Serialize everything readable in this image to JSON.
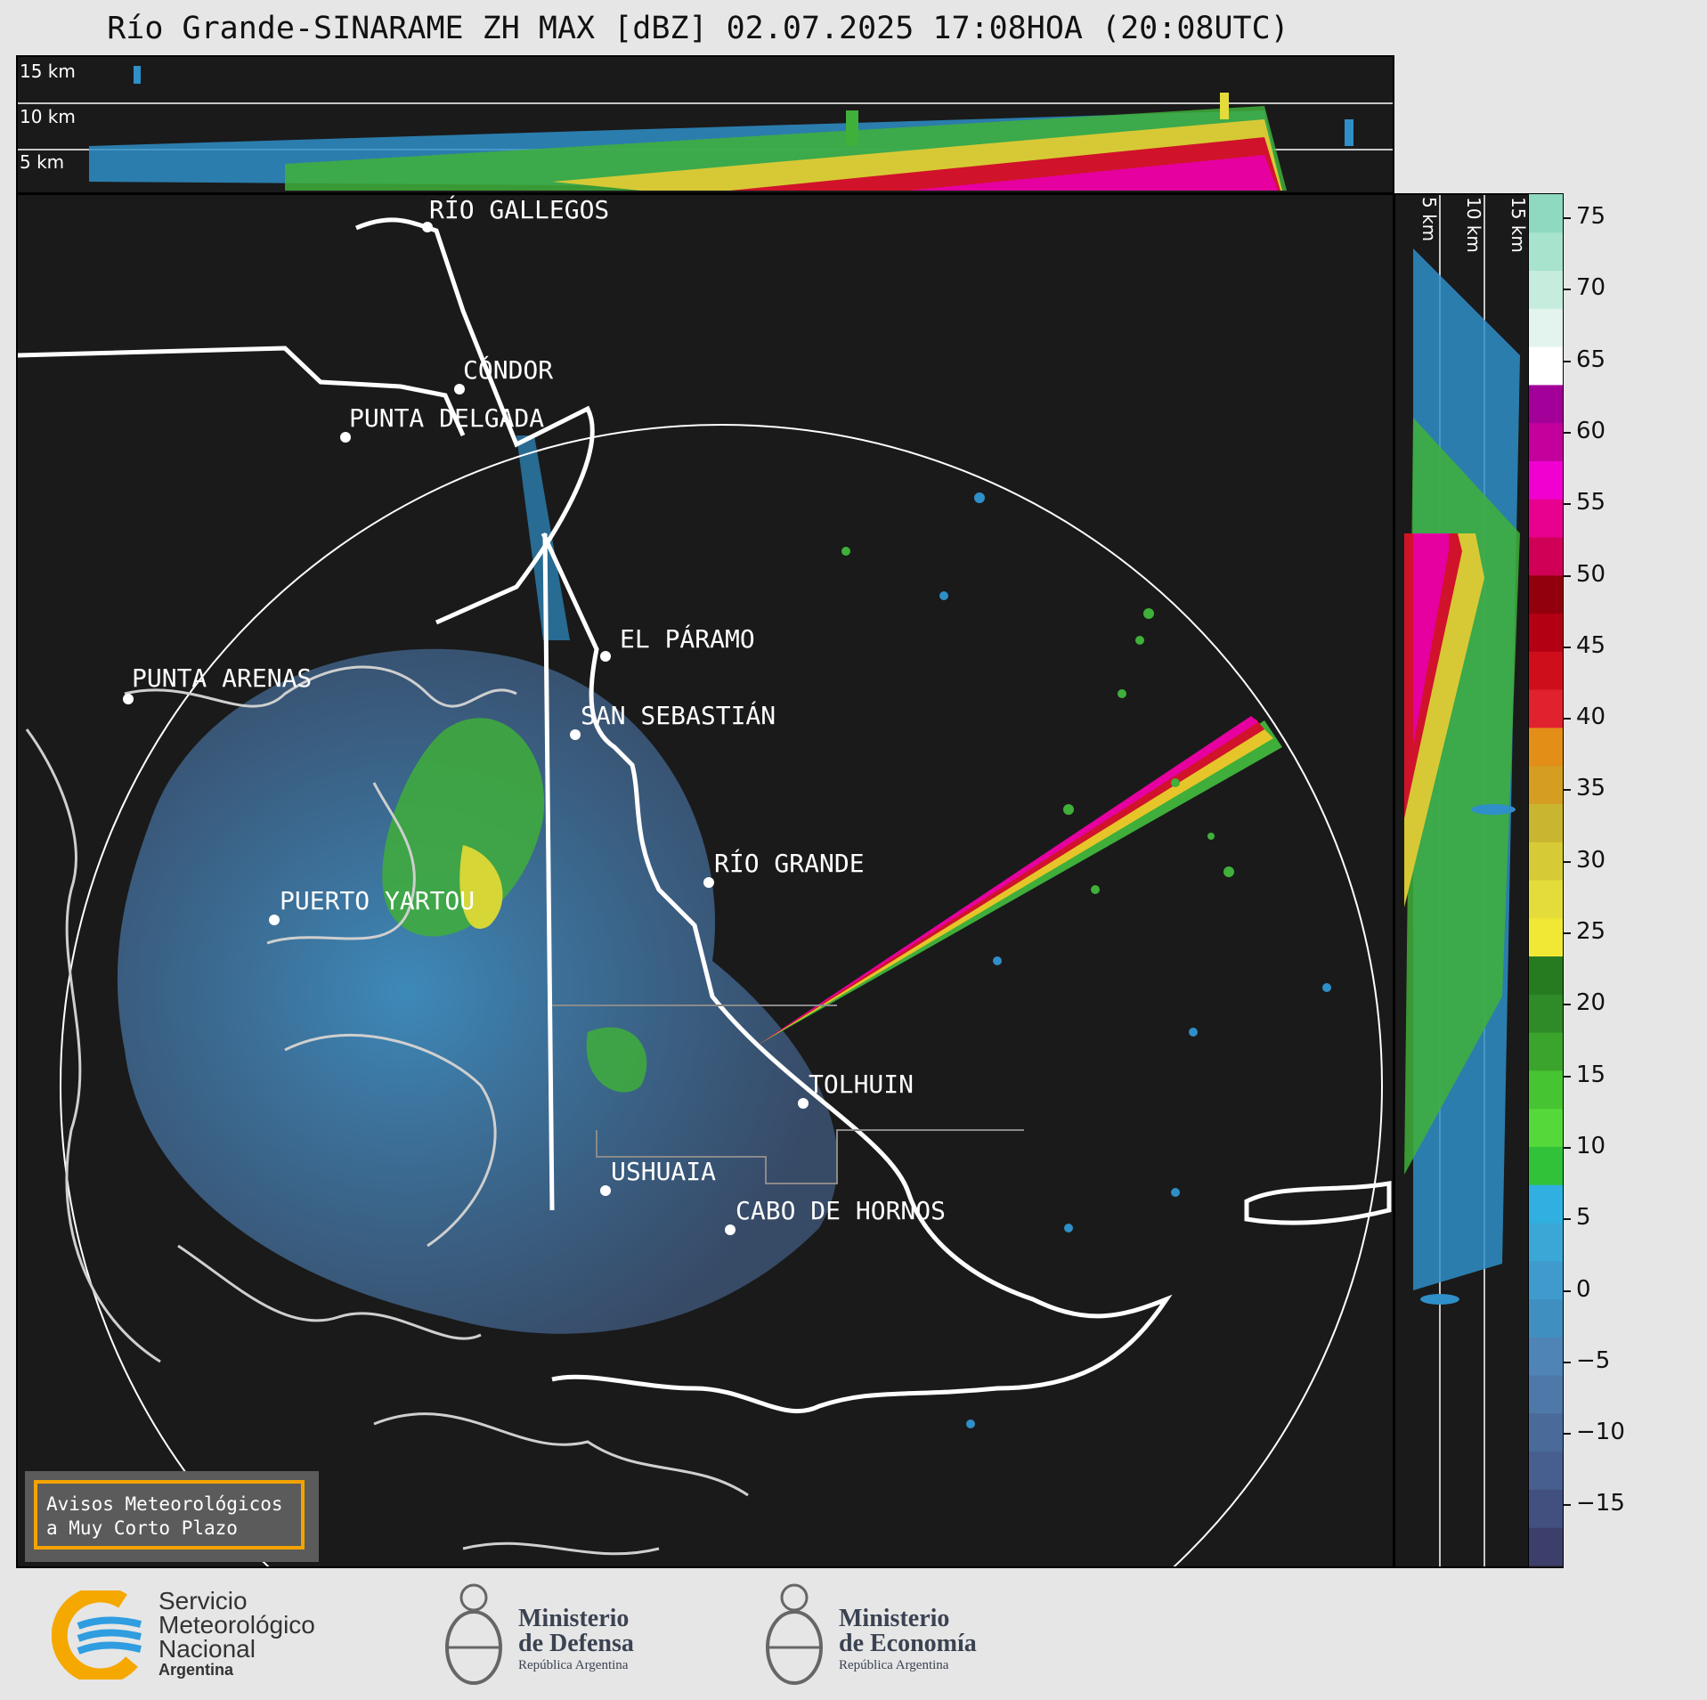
{
  "title": "Río Grande-SINARAME ZH MAX [dBZ] 02.07.2025 17:08HOA (20:08UTC)",
  "height_labels": {
    "top": [
      "15 km",
      "10 km",
      "5 km"
    ],
    "side": [
      "5 km",
      "10 km",
      "15 km"
    ]
  },
  "cities": [
    {
      "name": "RÍO GALLEGOS"
    },
    {
      "name": "CÓNDOR"
    },
    {
      "name": "PUNTA DELGADA"
    },
    {
      "name": "EL PÁRAMO"
    },
    {
      "name": "PUNTA ARENAS"
    },
    {
      "name": "SAN SEBASTIÁN"
    },
    {
      "name": "RÍO GRANDE"
    },
    {
      "name": "PUERTO YARTOU"
    },
    {
      "name": "TOLHUIN"
    },
    {
      "name": "USHUAIA"
    },
    {
      "name": "CABO DE HORNOS"
    }
  ],
  "colorbar": {
    "unit": "dBZ",
    "ticks": [
      "75",
      "70",
      "65",
      "60",
      "55",
      "50",
      "45",
      "40",
      "35",
      "30",
      "25",
      "20",
      "15",
      "10",
      "5",
      "0",
      "−5",
      "−10",
      "−15"
    ],
    "colors": [
      "#3d3f6b",
      "#42507f",
      "#475f8e",
      "#4a6a99",
      "#4e78a8",
      "#4e84b6",
      "#3f8fc1",
      "#3f9bcc",
      "#3aa7d7",
      "#2fb0e0",
      "#31c23a",
      "#54d83a",
      "#47c431",
      "#3aa42c",
      "#2f8a28",
      "#267a20",
      "#f1e836",
      "#e4dc3a",
      "#d6cb36",
      "#c9b52f",
      "#d59d21",
      "#e38e17",
      "#e0222f",
      "#cf0e1c",
      "#b30012",
      "#92000d",
      "#d10057",
      "#e8008e",
      "#f000d0",
      "#c4009c",
      "#a3009a",
      "#ffffff",
      "#e3f4ee",
      "#c6ecdd",
      "#a7e3cd",
      "#8ed9c0"
    ]
  },
  "warning_box": {
    "line1": "Avisos Meteorológicos",
    "line2": "a Muy Corto Plazo"
  },
  "logos": {
    "smn": {
      "line1": "Servicio",
      "line2": "Meteorológico",
      "line3": "Nacional",
      "line4": "Argentina"
    },
    "defensa": {
      "line1": "Ministerio",
      "line2": "de Defensa",
      "line3": "República Argentina"
    },
    "economia": {
      "line1": "Ministerio",
      "line2": "de Economía",
      "line3": "República Argentina"
    }
  }
}
